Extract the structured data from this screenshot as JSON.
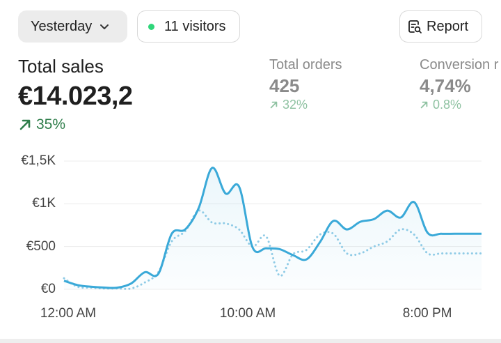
{
  "header": {
    "date_filter": "Yesterday",
    "visitors": "11 visitors",
    "report_label": "Report"
  },
  "colors": {
    "live_dot": "#2fd67a",
    "positive": "#2e7d4a",
    "positive_muted": "#8fc2a2",
    "series": "#3aa9d8",
    "comparison": "#8fcbe6"
  },
  "icons": {
    "date_filter": "chevron-down-icon",
    "live": "live-dot-icon",
    "report": "report-search-icon",
    "trend": "arrow-up-right-icon"
  },
  "metrics": {
    "total_sales": {
      "label": "Total sales",
      "value": "€14.023,2",
      "delta": "35%"
    },
    "total_orders": {
      "label": "Total orders",
      "value": "425",
      "delta": "32%"
    },
    "conversion": {
      "label": "Conversion r",
      "value": "4,74%",
      "delta": "0.8%"
    }
  },
  "chart_data": {
    "type": "line",
    "x_ticks": [
      "12:00 AM",
      "10:00 AM",
      "8:00 PM"
    ],
    "y_ticks": [
      "€0",
      "€500",
      "€1K",
      "€1,5K"
    ],
    "ylim": [
      0,
      1500
    ],
    "grid": true,
    "x": [
      0,
      0.75,
      1.5,
      2.25,
      3,
      3.75,
      4.5,
      5.25,
      6,
      6.75,
      7.5,
      8.25,
      9,
      9.75,
      10.5,
      11.25,
      12,
      12.75,
      13.5,
      14.25,
      15,
      15.75,
      16.5,
      17.25,
      18,
      18.75,
      19.5,
      20.25,
      21,
      21.75,
      22.5,
      23.25
    ],
    "series": [
      {
        "values": [
          100,
          50,
          30,
          20,
          20,
          70,
          200,
          180,
          650,
          700,
          950,
          1420,
          1120,
          1200,
          490,
          480,
          470,
          400,
          350,
          550,
          800,
          700,
          790,
          820,
          920,
          840,
          1020,
          660,
          650,
          650,
          650,
          650
        ]
      },
      {
        "values": [
          130,
          30,
          20,
          10,
          10,
          10,
          80,
          200,
          560,
          680,
          920,
          780,
          770,
          700,
          500,
          620,
          160,
          410,
          460,
          640,
          650,
          420,
          420,
          500,
          560,
          700,
          640,
          420,
          420,
          420,
          420,
          420
        ],
        "style": "dotted"
      }
    ]
  }
}
